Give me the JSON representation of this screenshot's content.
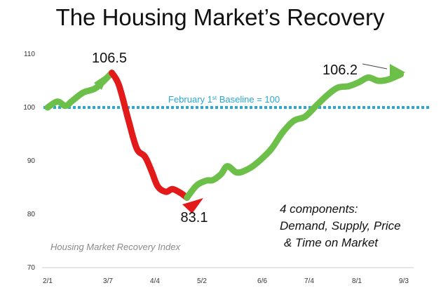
{
  "chart_data": {
    "type": "line",
    "title": "The Housing Market’s Recovery",
    "x_ticks": [
      "2/1",
      "3/7",
      "4/4",
      "5/2",
      "6/6",
      "7/4",
      "8/1",
      "9/3"
    ],
    "y_ticks": [
      110,
      100,
      90,
      80,
      70
    ],
    "ylim": [
      70,
      110
    ],
    "grid": false,
    "baseline": {
      "value": 100,
      "label_main": "February 1",
      "label_sup": "st",
      "label_rest": " Baseline = 100",
      "color": "#29a8d6"
    },
    "series": [
      {
        "color": "#6cc04a",
        "points": [
          [
            0,
            100
          ],
          [
            0.3,
            101.1
          ],
          [
            0.55,
            100.3
          ],
          [
            0.75,
            101.2
          ],
          [
            1.1,
            102.8
          ],
          [
            1.5,
            103.7
          ],
          [
            1.98,
            106.5
          ]
        ]
      },
      {
        "color": "#e21a1a",
        "points": [
          [
            1.98,
            106.5
          ],
          [
            2.2,
            104.2
          ],
          [
            2.5,
            97.5
          ],
          [
            2.75,
            92.3
          ],
          [
            3.0,
            90.8
          ],
          [
            3.2,
            88.2
          ],
          [
            3.4,
            85.2
          ],
          [
            3.65,
            84.2
          ],
          [
            3.85,
            84.7
          ],
          [
            4.1,
            84.0
          ],
          [
            4.3,
            83.1
          ]
        ]
      },
      {
        "color": "#6cc04a",
        "points": [
          [
            4.3,
            83.1
          ],
          [
            4.6,
            85.4
          ],
          [
            4.9,
            86.3
          ],
          [
            5.1,
            86.4
          ],
          [
            5.35,
            87.5
          ],
          [
            5.55,
            89.0
          ],
          [
            5.85,
            87.8
          ],
          [
            6.2,
            88.5
          ],
          [
            6.5,
            89.8
          ],
          [
            6.9,
            92.2
          ],
          [
            7.25,
            95.3
          ],
          [
            7.6,
            97.5
          ],
          [
            7.95,
            98.3
          ],
          [
            8.3,
            100.4
          ],
          [
            8.65,
            102.4
          ],
          [
            8.95,
            103.7
          ],
          [
            9.3,
            104.0
          ],
          [
            9.6,
            104.7
          ],
          [
            9.9,
            105.6
          ],
          [
            10.2,
            105.0
          ],
          [
            10.5,
            105.2
          ],
          [
            10.9,
            106.2
          ]
        ]
      }
    ],
    "peak_labels": [
      "106.5",
      "83.1",
      "106.2"
    ],
    "note_lines": [
      "4 components:",
      "Demand, Supply, Price",
      "& Time on Market"
    ],
    "index_label": "Housing Market Recovery Index"
  }
}
